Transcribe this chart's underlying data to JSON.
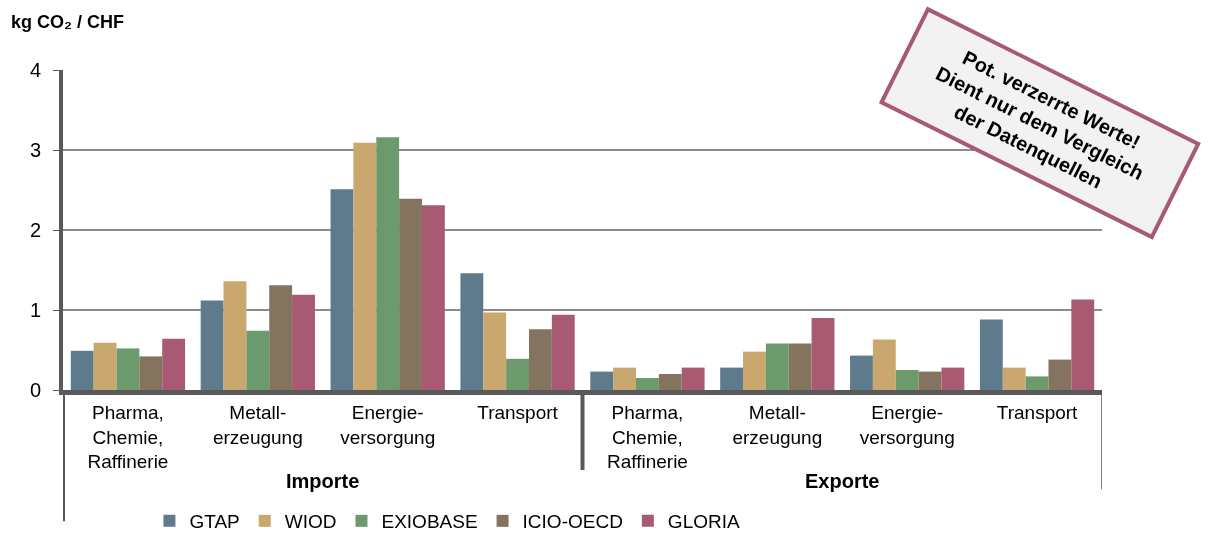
{
  "chart_data": {
    "type": "bar",
    "ylabel": "kg CO₂ / CHF",
    "categories": [
      "Pharma,\nChemie,\nRaffinerie",
      "Metall-\nerzeugung",
      "Energie-\nversorgung",
      "Transport",
      "Pharma,\nChemie,\nRaffinerie",
      "Metall-\nerzeugung",
      "Energie-\nversorgung",
      "Transport"
    ],
    "series": [
      {
        "name": "GTAP",
        "color": "#5e7b8e",
        "values": [
          0.49,
          1.12,
          2.51,
          1.46,
          0.23,
          0.28,
          0.43,
          0.88
        ]
      },
      {
        "name": "WIOD",
        "color": "#c9a76f",
        "values": [
          0.59,
          1.36,
          3.09,
          0.97,
          0.28,
          0.48,
          0.63,
          0.28
        ]
      },
      {
        "name": "EXIOBASE",
        "color": "#6d9a6d",
        "values": [
          0.52,
          0.74,
          3.16,
          0.39,
          0.15,
          0.58,
          0.25,
          0.17
        ]
      },
      {
        "name": "ICIO-OECD",
        "color": "#84735f",
        "values": [
          0.42,
          1.31,
          2.39,
          0.76,
          0.2,
          0.58,
          0.23,
          0.38
        ]
      },
      {
        "name": "GLORIA",
        "color": "#a85a73",
        "values": [
          0.64,
          1.19,
          2.31,
          0.94,
          0.28,
          0.9,
          0.28,
          1.13
        ]
      }
    ],
    "ylim": [
      0,
      4
    ],
    "yticks": [
      0,
      1,
      2,
      3,
      4
    ],
    "grid": "y",
    "legend": "bottom",
    "annotations": [
      "Importe",
      "Exporte",
      "Pot. verzerrte Werte!\nDient nur dem Vergleich\nder Datenquellen"
    ]
  }
}
